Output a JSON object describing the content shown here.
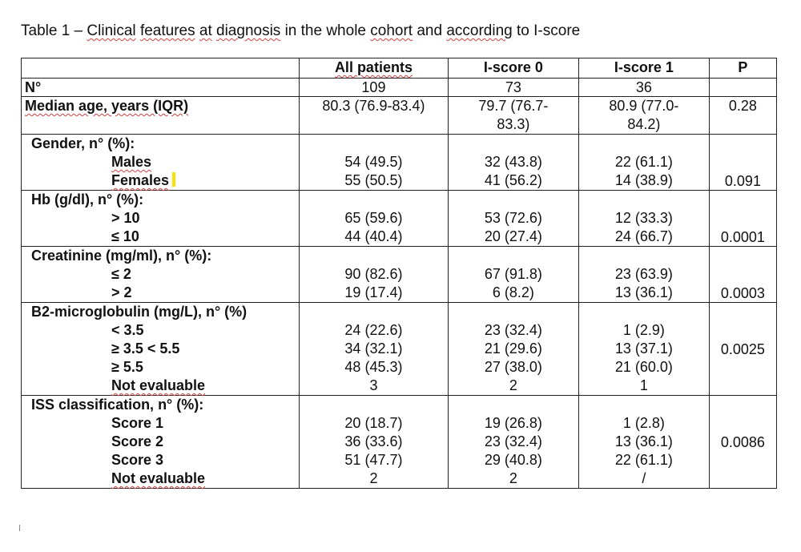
{
  "caption": {
    "prefix": "Table 1 – ",
    "w1": "Clinical",
    "w2": "features",
    "w3": "at",
    "w4": "diagnosis",
    "mid": "in the whole",
    "w5": "cohort",
    "and": "and",
    "w6": "according",
    "tail": "to I-score"
  },
  "columns": [
    "",
    "All patients",
    "I-score 0",
    "I-score 1",
    "P"
  ],
  "n_row": {
    "label": "N°",
    "all": "109",
    "s0": "73",
    "s1": "36",
    "p": ""
  },
  "age_row": {
    "label": "Median age, years (IQR)",
    "all": "80.3 (76.9-83.4)",
    "s0": [
      "79.7 (76.7-",
      "83.3)"
    ],
    "s1": [
      "80.9 (77.0-",
      "84.2)"
    ],
    "p": "0.28"
  },
  "groups": [
    {
      "title": "Gender, n° (%):",
      "items": [
        {
          "label": "Males",
          "all": "54 (49.5)",
          "s0": "32 (43.8)",
          "s1": "22 (61.1)"
        },
        {
          "label": "Females",
          "all": "55 (50.5)",
          "s0": "41 (56.2)",
          "s1": "14 (38.9)"
        }
      ],
      "p": "0.091"
    },
    {
      "title": "Hb (g/dl), n° (%):",
      "items": [
        {
          "label": "> 10",
          "all": "65 (59.6)",
          "s0": "53 (72.6)",
          "s1": "12 (33.3)"
        },
        {
          "label": "≤ 10",
          "all": "44 (40.4)",
          "s0": "20 (27.4)",
          "s1": "24 (66.7)"
        }
      ],
      "p": "0.0001"
    },
    {
      "title": "Creatinine (mg/ml), n° (%):",
      "items": [
        {
          "label": "≤ 2",
          "all": "90 (82.6)",
          "s0": "67 (91.8)",
          "s1": "23 (63.9)"
        },
        {
          "label": "> 2",
          "all": "19 (17.4)",
          "s0": "6 (8.2)",
          "s1": "13 (36.1)"
        }
      ],
      "p": "0.0003"
    },
    {
      "title": "B2-microglobulin (mg/L), n° (%)",
      "items": [
        {
          "label": "< 3.5",
          "all": "24 (22.6)",
          "s0": "23 (32.4)",
          "s1": "1 (2.9)"
        },
        {
          "label": "≥ 3.5 < 5.5",
          "all": "34 (32.1)",
          "s0": "21 (29.6)",
          "s1": "13 (37.1)"
        },
        {
          "label": "≥ 5.5",
          "all": "48 (45.3)",
          "s0": "27 (38.0)",
          "s1": "21 (60.0)"
        },
        {
          "label": "Not evaluable",
          "all": "3",
          "s0": "2",
          "s1": "1"
        }
      ],
      "p": "0.0025"
    },
    {
      "title": "ISS classification, n° (%):",
      "items": [
        {
          "label": "Score 1",
          "all": "20 (18.7)",
          "s0": "19 (26.8)",
          "s1": "1 (2.8)"
        },
        {
          "label": "Score 2",
          "all": "36 (33.6)",
          "s0": "23 (32.4)",
          "s1": "13 (36.1)"
        },
        {
          "label": "Score 3",
          "all": "51 (47.7)",
          "s0": "29 (40.8)",
          "s1": "22 (61.1)"
        },
        {
          "label": "Not evaluable",
          "all": "2",
          "s0": "2",
          "s1": "/"
        }
      ],
      "p": "0.0086"
    }
  ]
}
